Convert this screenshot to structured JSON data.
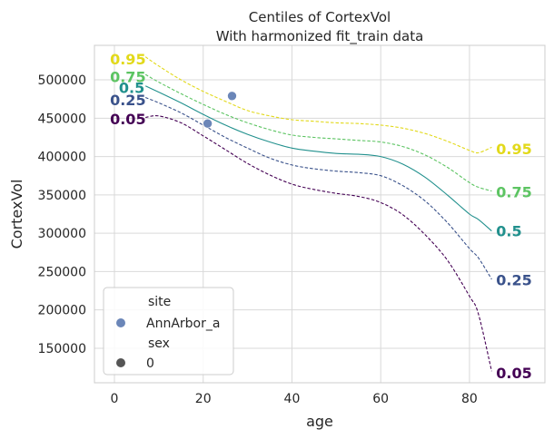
{
  "chart_data": {
    "type": "line",
    "title": "Centiles of CortexVol",
    "subtitle": "With harmonized fit_train data",
    "xlabel": "age",
    "ylabel": "CortexVol",
    "xlim": [
      -4.5,
      97
    ],
    "ylim": [
      105000,
      545000
    ],
    "xticks": [
      0,
      20,
      40,
      60,
      80
    ],
    "yticks": [
      150000,
      200000,
      250000,
      300000,
      350000,
      400000,
      450000,
      500000
    ],
    "grid": true,
    "legend_position": "lower-left",
    "legend": {
      "hue_title": "site",
      "hue_items": [
        {
          "label": "AnnArbor_a",
          "color": "#6b86b8"
        }
      ],
      "style_title": "sex",
      "style_items": [
        {
          "label": "0",
          "color": "#555555"
        }
      ]
    },
    "x": [
      7,
      10,
      15,
      20,
      25,
      30,
      35,
      40,
      45,
      50,
      55,
      60,
      65,
      70,
      75,
      80,
      82,
      85
    ],
    "series": [
      {
        "centile": "0.95",
        "color": "#e2d91a",
        "dashed": true,
        "values": [
          530000,
          518000,
          500000,
          485000,
          472000,
          460000,
          453000,
          448000,
          446000,
          444000,
          443000,
          441000,
          437000,
          430000,
          420000,
          408000,
          405000,
          412000
        ]
      },
      {
        "centile": "0.75",
        "color": "#5cc462",
        "dashed": true,
        "values": [
          507000,
          497000,
          482000,
          468000,
          455000,
          444000,
          435000,
          428000,
          425000,
          423000,
          421000,
          419000,
          413000,
          402000,
          386000,
          366000,
          360000,
          355000
        ]
      },
      {
        "centile": "0.5",
        "color": "#21908d",
        "dashed": false,
        "values": [
          492000,
          484000,
          470000,
          455000,
          441000,
          429000,
          419000,
          411000,
          407000,
          404000,
          403000,
          400000,
          390000,
          373000,
          350000,
          325000,
          318000,
          303000
        ]
      },
      {
        "centile": "0.25",
        "color": "#3a528b",
        "dashed": true,
        "values": [
          477000,
          470000,
          457000,
          441000,
          425000,
          411000,
          398000,
          389000,
          384000,
          381000,
          379000,
          375000,
          362000,
          342000,
          314000,
          280000,
          268000,
          240000
        ]
      },
      {
        "centile": "0.05",
        "color": "#440154",
        "dashed": true,
        "values": [
          451000,
          453000,
          444000,
          427000,
          409000,
          391000,
          376000,
          364000,
          357000,
          352000,
          348000,
          340000,
          324000,
          298000,
          265000,
          218000,
          195000,
          120000
        ]
      }
    ],
    "points": [
      {
        "x": 21,
        "y": 443000,
        "color": "#6b86b8"
      },
      {
        "x": 26.5,
        "y": 479000,
        "color": "#6b86b8"
      }
    ],
    "left_labels": [
      {
        "text": "0.95",
        "x": -1,
        "y": 527000,
        "color": "#e2d91a"
      },
      {
        "text": "0.75",
        "x": -1,
        "y": 504000,
        "color": "#5cc462"
      },
      {
        "text": "0.5",
        "x": 1,
        "y": 490000,
        "color": "#21908d"
      },
      {
        "text": "0.25",
        "x": -1,
        "y": 474000,
        "color": "#3a528b"
      },
      {
        "text": "0.05",
        "x": -1,
        "y": 449000,
        "color": "#440154"
      }
    ],
    "right_labels": [
      {
        "text": "0.95",
        "x": 86,
        "y": 410000,
        "color": "#e2d91a"
      },
      {
        "text": "0.75",
        "x": 86,
        "y": 354000,
        "color": "#5cc462"
      },
      {
        "text": "0.5",
        "x": 86,
        "y": 303000,
        "color": "#21908d"
      },
      {
        "text": "0.25",
        "x": 86,
        "y": 239000,
        "color": "#3a528b"
      },
      {
        "text": "0.05",
        "x": 86,
        "y": 118000,
        "color": "#440154"
      }
    ]
  }
}
